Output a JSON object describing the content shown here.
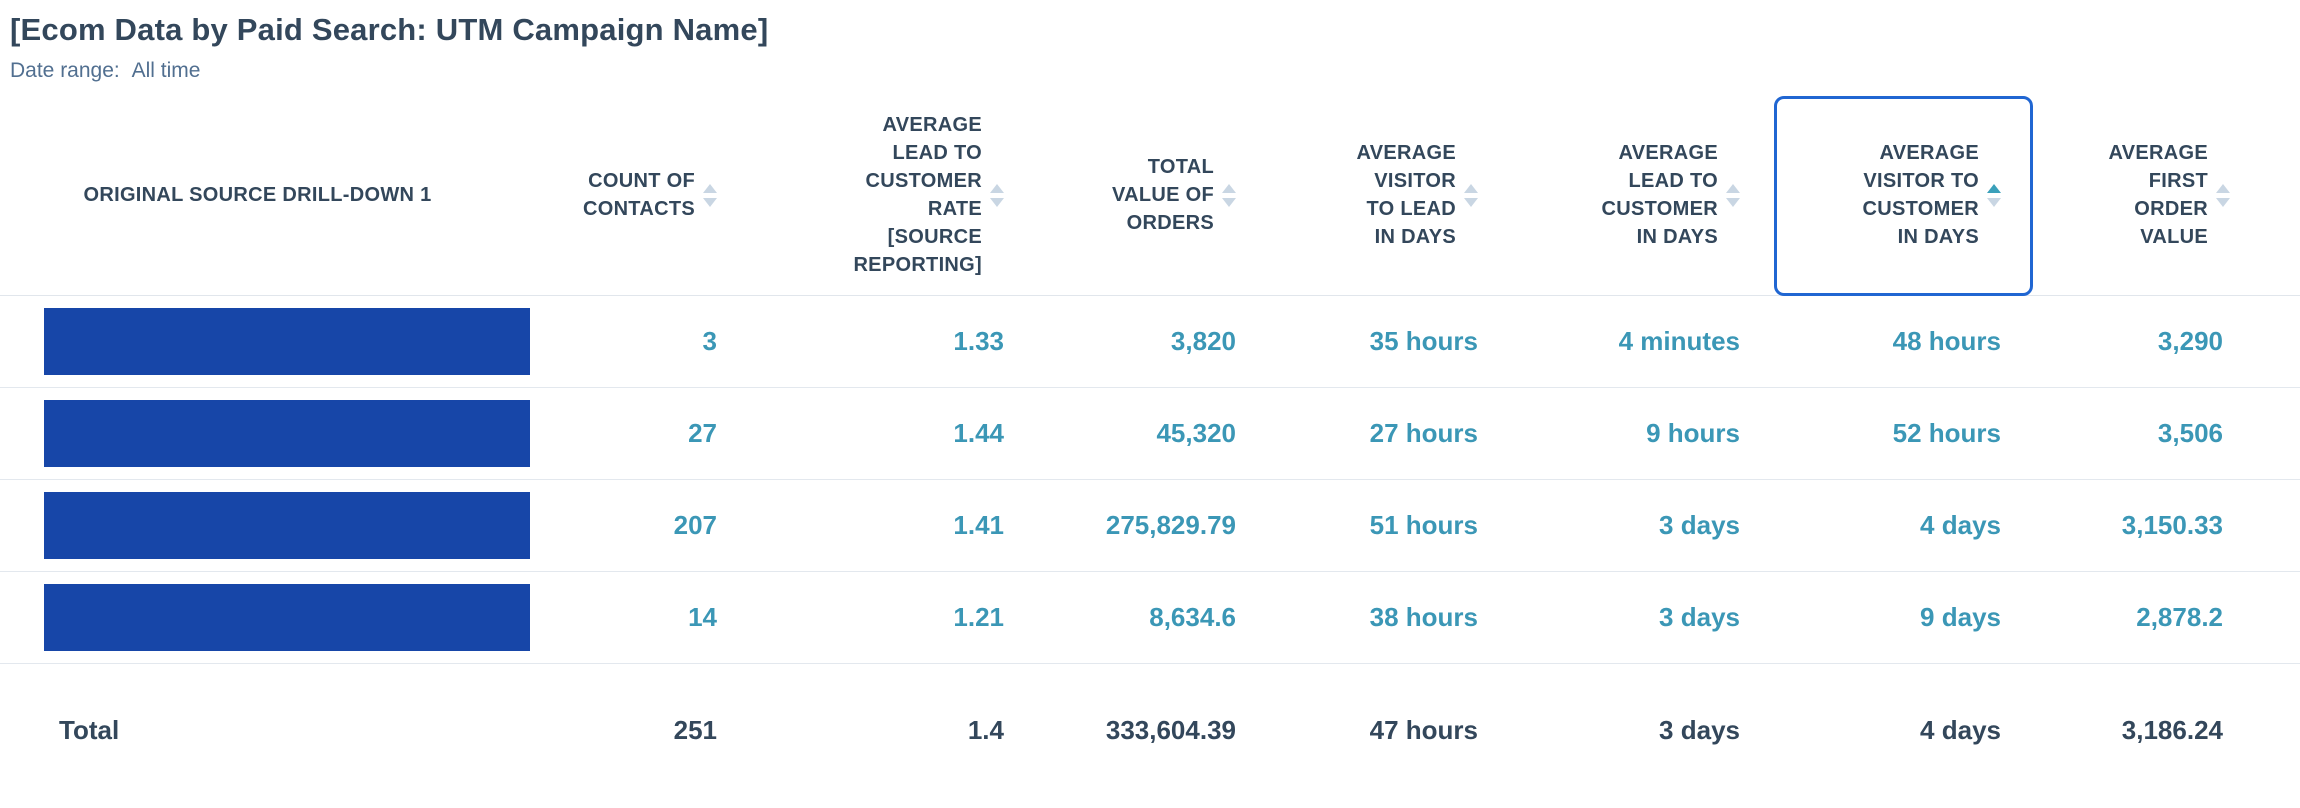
{
  "report": {
    "title": "[Ecom Data by Paid Search: UTM Campaign Name]",
    "date_range_label": "Date range:",
    "date_range_value": "All time"
  },
  "colors": {
    "heading_navy": "#33475b",
    "subtitle_slate": "#516f90",
    "value_teal": "#3b97b6",
    "redaction_bar_blue": "#1746a8",
    "sort_arrow_inactive": "#c9d6e3",
    "sort_arrow_active": "#3aa0ba",
    "focused_column_border": "#2066d2",
    "row_divider": "#e3e8ee"
  },
  "table": {
    "columns": [
      {
        "id": "source",
        "label": "ORIGINAL SOURCE DRILL-DOWN 1",
        "sortable": false,
        "sort": "none",
        "focused": false
      },
      {
        "id": "count_of_contacts",
        "label": "COUNT OF\nCONTACTS",
        "sortable": true,
        "sort": "none",
        "focused": false
      },
      {
        "id": "avg_lead_to_customer_rate",
        "label": "AVERAGE\nLEAD TO\nCUSTOMER\nRATE\n[SOURCE\nREPORTING]",
        "sortable": true,
        "sort": "none",
        "focused": false
      },
      {
        "id": "total_value_of_orders",
        "label": "TOTAL\nVALUE OF\nORDERS",
        "sortable": true,
        "sort": "none",
        "focused": false
      },
      {
        "id": "avg_visitor_to_lead_in_days",
        "label": "AVERAGE\nVISITOR\nTO LEAD\nIN DAYS",
        "sortable": true,
        "sort": "none",
        "focused": false
      },
      {
        "id": "avg_lead_to_customer_in_days",
        "label": "AVERAGE\nLEAD TO\nCUSTOMER\nIN DAYS",
        "sortable": true,
        "sort": "none",
        "focused": false
      },
      {
        "id": "avg_visitor_to_customer_in_days",
        "label": "AVERAGE\nVISITOR TO\nCUSTOMER\nIN DAYS",
        "sortable": true,
        "sort": "ascending",
        "focused": true
      },
      {
        "id": "avg_first_order_value",
        "label": "AVERAGE\nFIRST\nORDER\nVALUE",
        "sortable": true,
        "sort": "none",
        "focused": false
      }
    ],
    "rows": [
      {
        "source_redacted": true,
        "count_of_contacts": "3",
        "avg_lead_to_customer_rate": "1.33",
        "total_value_of_orders": "3,820",
        "avg_visitor_to_lead_in_days": "35 hours",
        "avg_lead_to_customer_in_days": "4 minutes",
        "avg_visitor_to_customer_in_days": "48 hours",
        "avg_first_order_value": "3,290"
      },
      {
        "source_redacted": true,
        "count_of_contacts": "27",
        "avg_lead_to_customer_rate": "1.44",
        "total_value_of_orders": "45,320",
        "avg_visitor_to_lead_in_days": "27 hours",
        "avg_lead_to_customer_in_days": "9 hours",
        "avg_visitor_to_customer_in_days": "52 hours",
        "avg_first_order_value": "3,506"
      },
      {
        "source_redacted": true,
        "count_of_contacts": "207",
        "avg_lead_to_customer_rate": "1.41",
        "total_value_of_orders": "275,829.79",
        "avg_visitor_to_lead_in_days": "51 hours",
        "avg_lead_to_customer_in_days": "3 days",
        "avg_visitor_to_customer_in_days": "4 days",
        "avg_first_order_value": "3,150.33"
      },
      {
        "source_redacted": true,
        "count_of_contacts": "14",
        "avg_lead_to_customer_rate": "1.21",
        "total_value_of_orders": "8,634.6",
        "avg_visitor_to_lead_in_days": "38 hours",
        "avg_lead_to_customer_in_days": "3 days",
        "avg_visitor_to_customer_in_days": "9 days",
        "avg_first_order_value": "2,878.2"
      }
    ],
    "total_row": {
      "label": "Total",
      "count_of_contacts": "251",
      "avg_lead_to_customer_rate": "1.4",
      "total_value_of_orders": "333,604.39",
      "avg_visitor_to_lead_in_days": "47 hours",
      "avg_lead_to_customer_in_days": "3 days",
      "avg_visitor_to_customer_in_days": "4 days",
      "avg_first_order_value": "3,186.24"
    }
  }
}
